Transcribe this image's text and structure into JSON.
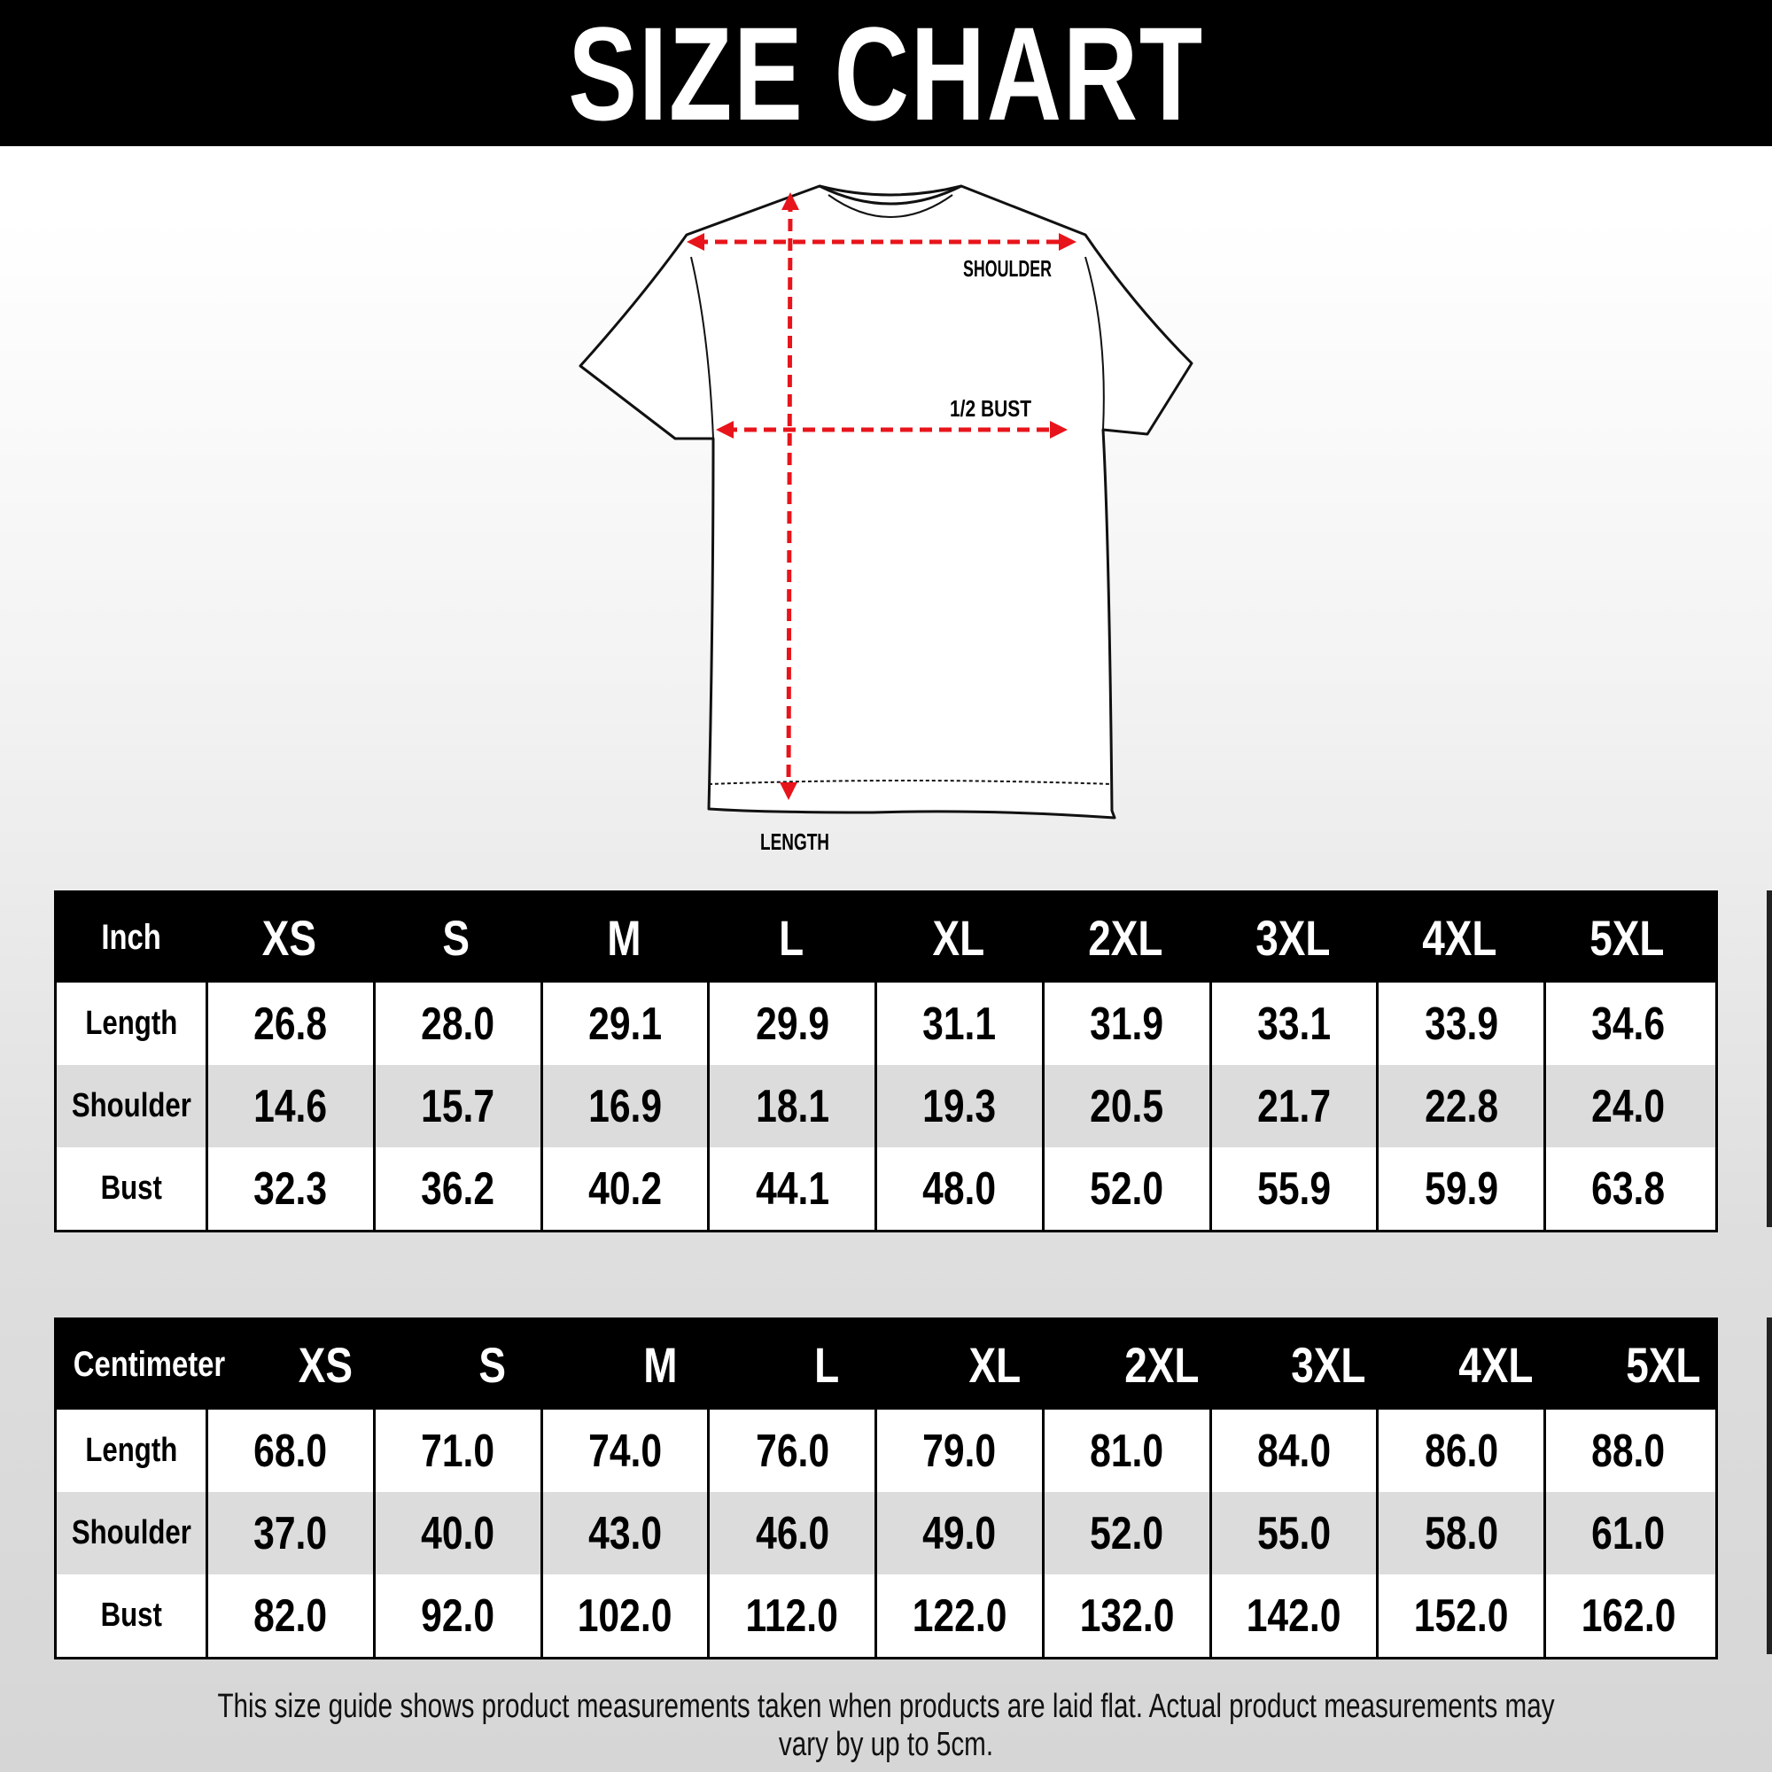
{
  "title": "SIZE CHART",
  "diagram": {
    "shoulder_label": "SHOULDER",
    "bust_label": "1/2 BUST",
    "length_label": "LENGTH",
    "arrow_color": "#e8141b"
  },
  "sizes": [
    "XS",
    "S",
    "M",
    "L",
    "XL",
    "2XL",
    "3XL",
    "4XL",
    "5XL"
  ],
  "inch_table": {
    "unit": "Inch",
    "rows": [
      {
        "label": "Length",
        "values": [
          "26.8",
          "28.0",
          "29.1",
          "29.9",
          "31.1",
          "31.9",
          "33.1",
          "33.9",
          "34.6"
        ]
      },
      {
        "label": "Shoulder",
        "values": [
          "14.6",
          "15.7",
          "16.9",
          "18.1",
          "19.3",
          "20.5",
          "21.7",
          "22.8",
          "24.0"
        ]
      },
      {
        "label": "Bust",
        "values": [
          "32.3",
          "36.2",
          "40.2",
          "44.1",
          "48.0",
          "52.0",
          "55.9",
          "59.9",
          "63.8"
        ]
      }
    ]
  },
  "cm_table": {
    "unit": "Centimeter",
    "rows": [
      {
        "label": "Length",
        "values": [
          "68.0",
          "71.0",
          "74.0",
          "76.0",
          "79.0",
          "81.0",
          "84.0",
          "86.0",
          "88.0"
        ]
      },
      {
        "label": "Shoulder",
        "values": [
          "37.0",
          "40.0",
          "43.0",
          "46.0",
          "49.0",
          "52.0",
          "55.0",
          "58.0",
          "61.0"
        ]
      },
      {
        "label": "Bust",
        "values": [
          "82.0",
          "92.0",
          "102.0",
          "112.0",
          "122.0",
          "132.0",
          "142.0",
          "152.0",
          "162.0"
        ]
      }
    ]
  },
  "footnote": "This size guide shows product measurements taken when products are laid flat. Actual product measurements may vary by up to 5cm."
}
